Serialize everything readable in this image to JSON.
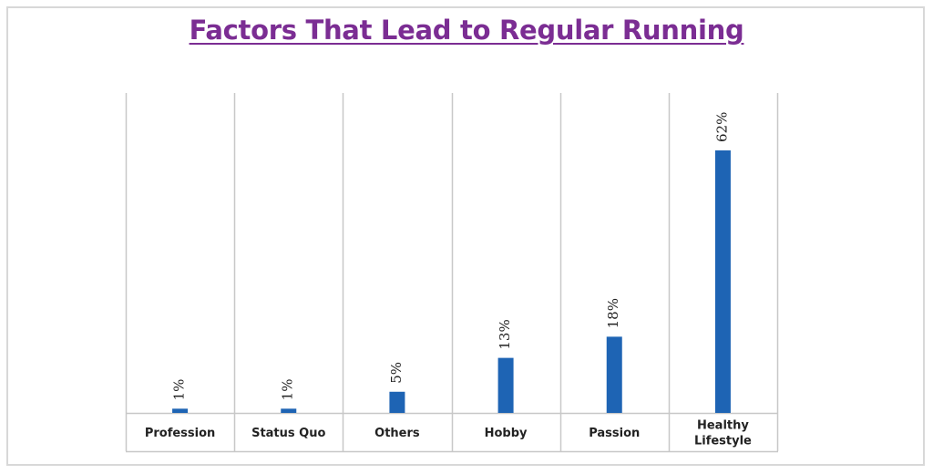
{
  "chart_data": {
    "type": "bar",
    "title": "Factors That Lead to Regular Running",
    "categories": [
      [
        "Profession"
      ],
      [
        "Status Quo"
      ],
      [
        "Others"
      ],
      [
        "Hobby"
      ],
      [
        "Passion"
      ],
      [
        "Healthy",
        "Lifestyle"
      ]
    ],
    "values": [
      1,
      1,
      5,
      13,
      18,
      62
    ],
    "data_labels": [
      "1%",
      "1%",
      "5%",
      "13%",
      "18%",
      "62%"
    ],
    "xlabel": "",
    "ylabel": "",
    "ylim": [
      0,
      62
    ],
    "grid": "vertical category separators",
    "colors": {
      "bar": "#1e64b4",
      "title": "#7b2d93",
      "grid": "#c8c8c8",
      "frame": "#d8d8d8"
    }
  }
}
